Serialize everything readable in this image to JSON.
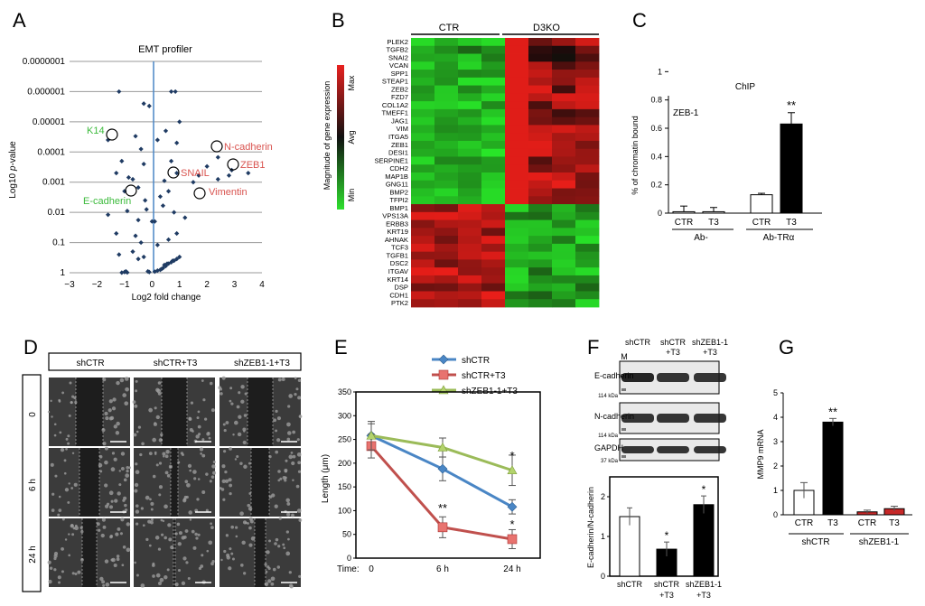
{
  "panels": {
    "A": "A",
    "B": "B",
    "C": "C",
    "D": "D",
    "E": "E",
    "F": "F",
    "G": "G"
  },
  "panelA": {
    "title": "EMT profiler",
    "xlabel": "Log2 fold change",
    "ylabel_pre": "Log10 ",
    "ylabel_it": "p",
    "ylabel_post": "-value",
    "xticks": [
      "−3",
      "−2",
      "−1",
      "0",
      "1",
      "2",
      "3",
      "4"
    ],
    "yticks": [
      "0.0000001",
      "0.000001",
      "0.00001",
      "0.0001",
      "0.001",
      "0.01",
      "0.1",
      "1"
    ],
    "labels": {
      "k14": "K14",
      "ncad": "N-cadherin",
      "zeb1": "ZEB1",
      "snail": "SNAIL",
      "ecad": "E-cadherin",
      "vim": "Vimentin"
    },
    "colors": {
      "green": "#3dbb3d",
      "red": "#d9534f",
      "point": "#1f3b63",
      "axis": "#4a86c5"
    }
  },
  "panelB": {
    "ctr": "CTR",
    "ko": "D3KO",
    "cbar_title": "Magnitude of gene expression",
    "cbar_max": "Max",
    "cbar_avg": "Avg",
    "cbar_min": "Min",
    "genes": [
      "PLEK2",
      "TGFB2",
      "SNAI2",
      "VCAN",
      "SPP1",
      "STEAP1",
      "ZEB2",
      "FZD7",
      "COL1A2",
      "TMEFF1",
      "JAG1",
      "VIM",
      "ITGA5",
      "ZEB1",
      "DESI1",
      "SERPINE1",
      "CDH2",
      "MAP1B",
      "GNG11",
      "BMP2",
      "TFPI2",
      "BMP1",
      "VPS13A",
      "ERBB3",
      "KRT19",
      "AHNAK",
      "TCF3",
      "TGFB1",
      "DSC2",
      "ITGAV",
      "KRT14",
      "DSP",
      "CDH1",
      "PTK2"
    ]
  },
  "panelC": {
    "title": "ChIP",
    "ylabel": "% of chromatin bound",
    "inset": "ZEB-1",
    "yticks": [
      "0",
      "0.2",
      "0.4",
      "0.6",
      "0.8",
      "1"
    ],
    "bars": [
      "CTR",
      "T3",
      "CTR",
      "T3"
    ],
    "groups": [
      "Ab-",
      "Ab-TRα"
    ],
    "sig": "**"
  },
  "panelD": {
    "cols": [
      "shCTR",
      "shCTR+T3",
      "shZEB1-1+T3"
    ],
    "rows": [
      "0",
      "6 h",
      "24 h"
    ]
  },
  "panelE": {
    "ylabel": "Length (μm)",
    "time_label": "Time:",
    "legend": [
      "shCTR",
      "shCTR+T3",
      "shZEB1-1+T3"
    ],
    "sig_6h": "**",
    "sig_24h_top": "*",
    "sig_24h_bot": "*"
  },
  "panelF": {
    "lanes": [
      "shCTR",
      "shCTR\n+T3",
      "shZEB1-1\n+T3"
    ],
    "lane1": "shCTR",
    "lane2a": "shCTR",
    "lane2b": "+T3",
    "lane3a": "shZEB1-1",
    "lane3b": "+T3",
    "marker": "M",
    "blots": [
      "E-cadherin",
      "N-cadherin",
      "GAPDH"
    ],
    "kda1": "114 kDa",
    "kda2": "114 kDa",
    "kda3": "37 kDa",
    "ylabel": "E-cadherin/N-cadherin",
    "yticks": [
      "0",
      "1",
      "2"
    ],
    "xl1": "shCTR",
    "xl2a": "shCTR",
    "xl2b": "+T3",
    "xl3a": "shZEB1-1",
    "xl3b": "+T3",
    "sig": "*"
  },
  "panelG": {
    "ylabel": "MMP9 mRNA",
    "yticks": [
      "0",
      "1",
      "2",
      "3",
      "4",
      "5"
    ],
    "bars": [
      "CTR",
      "T3",
      "CTR",
      "T3"
    ],
    "groups": [
      "shCTR",
      "shZEB1-1"
    ],
    "sig": "**"
  },
  "chart_data": [
    {
      "type": "scatter",
      "title": "EMT profiler",
      "xlabel": "Log2 fold change",
      "ylabel": "Log10 p-value",
      "xlim": [
        -3,
        4
      ],
      "ylim_log10_p": [
        0,
        -7
      ],
      "points": [
        {
          "x": -1.1,
          "y": 0.99
        },
        {
          "x": -1.0,
          "y": 0.95
        },
        {
          "x": -0.95,
          "y": 0.9
        },
        {
          "x": -0.9,
          "y": 0.98
        },
        {
          "x": -0.1,
          "y": 0.95
        },
        {
          "x": -0.15,
          "y": 0.9
        },
        {
          "x": 0.1,
          "y": 0.92
        },
        {
          "x": 0.2,
          "y": 0.85
        },
        {
          "x": 0.3,
          "y": 0.8
        },
        {
          "x": 0.4,
          "y": 0.7
        },
        {
          "x": 0.5,
          "y": 0.6
        },
        {
          "x": 0.6,
          "y": 0.5
        },
        {
          "x": 0.7,
          "y": 0.45
        },
        {
          "x": 0.8,
          "y": 0.4
        },
        {
          "x": 0.9,
          "y": 0.35
        },
        {
          "x": 1.0,
          "y": 0.3
        },
        {
          "x": 0.35,
          "y": 0.75
        },
        {
          "x": 0.45,
          "y": 0.55
        },
        {
          "x": 0.55,
          "y": 0.5
        },
        {
          "x": 0.75,
          "y": 0.4
        },
        {
          "x": -0.3,
          "y": 0.3
        },
        {
          "x": -0.5,
          "y": 0.35
        },
        {
          "x": -0.7,
          "y": 0.2
        },
        {
          "x": -1.2,
          "y": 0.25
        },
        {
          "x": -0.4,
          "y": 0.1
        },
        {
          "x": 0.2,
          "y": 0.12
        },
        {
          "x": 0.6,
          "y": 0.08
        },
        {
          "x": -1.3,
          "y": 0.05
        },
        {
          "x": -0.6,
          "y": 0.06
        },
        {
          "x": 0.1,
          "y": 0.02
        },
        {
          "x": 0.9,
          "y": 0.05
        },
        {
          "x": -0.2,
          "y": 0.008
        },
        {
          "x": 0.4,
          "y": 0.006
        },
        {
          "x": -0.9,
          "y": 0.009
        },
        {
          "x": 0.8,
          "y": 0.01
        },
        {
          "x": -1.6,
          "y": 0.012
        },
        {
          "x": 1.2,
          "y": 0.015
        },
        {
          "x": 0.0,
          "y": 0.02
        },
        {
          "x": -0.5,
          "y": 0.018
        },
        {
          "x": -0.25,
          "y": 0.004
        },
        {
          "x": 0.3,
          "y": 0.003
        },
        {
          "x": 0.6,
          "y": 0.002
        },
        {
          "x": -0.5,
          "y": 0.0015
        },
        {
          "x": -1.0,
          "y": 0.002
        },
        {
          "x": -0.7,
          "y": 0.0008
        },
        {
          "x": 0.45,
          "y": 0.0009
        },
        {
          "x": -1.3,
          "y": 0.0005
        },
        {
          "x": -1.1,
          "y": 0.0002
        },
        {
          "x": -0.3,
          "y": 0.00025
        },
        {
          "x": 0.7,
          "y": 0.0002
        },
        {
          "x": 1.5,
          "y": 0.001
        },
        {
          "x": -0.4,
          "y": 8e-05
        },
        {
          "x": -0.6,
          "y": 3e-05
        },
        {
          "x": 0.5,
          "y": 2e-05
        },
        {
          "x": 1.0,
          "y": 1e-05
        },
        {
          "x": -0.3,
          "y": 2.5e-06
        },
        {
          "x": -0.1,
          "y": 3e-06
        },
        {
          "x": -1.2,
          "y": 1e-06
        },
        {
          "x": 0.7,
          "y": 1e-06
        },
        {
          "x": 0.85,
          "y": 1e-06
        },
        {
          "x": 0.2,
          "y": 4e-05
        },
        {
          "x": 0.9,
          "y": 5e-05
        },
        {
          "x": 3.5,
          "y": 0.0005
        },
        {
          "x": 2.8,
          "y": 0.0006
        },
        {
          "x": 2.4,
          "y": 0.0008
        },
        {
          "x": 2.0,
          "y": 0.0003
        },
        {
          "x": -1.6,
          "y": 4e-05
        },
        {
          "x": 2.4,
          "y": 0.00015
        },
        {
          "x": 2.9,
          "y": 0.0004
        },
        {
          "x": 1.7,
          "y": 0.0006
        },
        {
          "x": 0.9,
          "y": 0.0005
        },
        {
          "x": -0.85,
          "y": 0.0007
        }
      ]
    },
    {
      "type": "bar",
      "title": "ChIP",
      "ylabel": "% of chromatin bound",
      "categories": [
        "CTR",
        "T3",
        "CTR",
        "T3"
      ],
      "values": [
        0.01,
        0.01,
        0.13,
        0.63
      ],
      "errors": [
        0.04,
        0.03,
        0.01,
        0.08
      ],
      "ylim": [
        0,
        1
      ]
    },
    {
      "type": "line",
      "ylabel": "Length (μm)",
      "x": [
        "0",
        "6 h",
        "24 h"
      ],
      "ylim": [
        0,
        350
      ],
      "series": [
        {
          "name": "shCTR",
          "values": [
            258,
            188,
            108
          ],
          "errors": [
            25,
            25,
            15
          ]
        },
        {
          "name": "shCTR+T3",
          "values": [
            236,
            65,
            40
          ],
          "errors": [
            25,
            22,
            20
          ]
        },
        {
          "name": "shZEB1-1+T3",
          "values": [
            258,
            233,
            185
          ],
          "errors": [
            30,
            20,
            32
          ]
        }
      ]
    },
    {
      "type": "bar",
      "ylabel": "E-cadherin/N-cadherin",
      "categories": [
        "shCTR",
        "shCTR +T3",
        "shZEB1-1 +T3"
      ],
      "values": [
        1.5,
        0.68,
        1.8
      ],
      "errors": [
        0.22,
        0.18,
        0.22
      ],
      "ylim": [
        0,
        2.5
      ]
    },
    {
      "type": "bar",
      "ylabel": "MMP9 mRNA",
      "categories": [
        "CTR",
        "T3",
        "CTR",
        "T3"
      ],
      "values": [
        1.0,
        3.8,
        0.12,
        0.25
      ],
      "errors": [
        0.32,
        0.15,
        0.07,
        0.1
      ],
      "ylim": [
        0,
        5
      ]
    }
  ]
}
